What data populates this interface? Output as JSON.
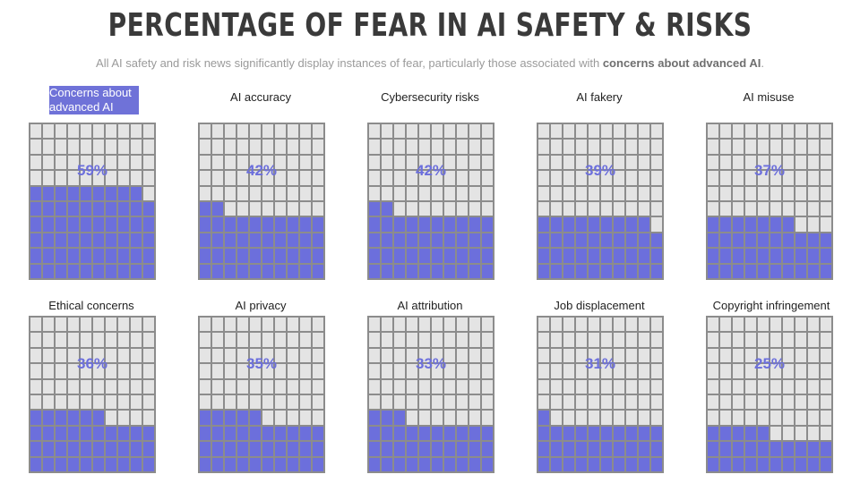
{
  "title": "PERCENTAGE OF FEAR IN AI SAFETY & RISKS",
  "subtitle_plain": "All AI safety and risk news significantly display instances of fear, particularly those associated with",
  "subtitle_bold": "concerns about advanced AI",
  "subtitle_end": ".",
  "colors": {
    "filled": "#6c6fdc",
    "empty": "#e4e4e4",
    "grid_line": "#8c8c8c",
    "highlight": "#6f72d8"
  },
  "chart_data": {
    "type": "waffle",
    "grid": [
      10,
      10
    ],
    "categories": [
      "Concerns about advanced AI",
      "AI accuracy",
      "Cybersecurity risks",
      "AI fakery",
      "AI misuse",
      "Ethical concerns",
      "AI privacy",
      "AI attribution",
      "Job displacement",
      "Copyright infringement"
    ],
    "values": [
      59,
      42,
      42,
      39,
      37,
      36,
      35,
      33,
      31,
      25
    ],
    "value_labels": [
      "59%",
      "42%",
      "42%",
      "39%",
      "37%",
      "36%",
      "35%",
      "33%",
      "31%",
      "25%"
    ],
    "highlighted": "Concerns about advanced AI"
  }
}
